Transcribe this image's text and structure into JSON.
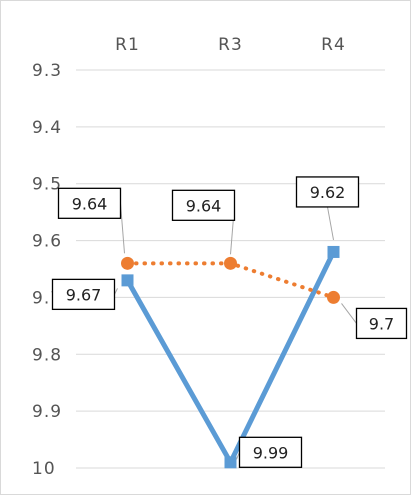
{
  "chart_data": {
    "type": "line",
    "categories": [
      "R1",
      "R3",
      "R4"
    ],
    "y_axis": {
      "reversed": true,
      "min": 9.3,
      "max": 10,
      "major_unit": 0.1,
      "tick_labels": [
        "9.3",
        "9.4",
        "9.5",
        "9.6",
        "9.7",
        "9.8",
        "9.9",
        "10"
      ]
    },
    "x_axis_position": "top",
    "grid": true,
    "legend": "none",
    "series": [
      {
        "values": [
          9.67,
          9.99,
          9.62
        ],
        "labels": [
          "9.67",
          "9.99",
          "9.62"
        ],
        "color": "#5b9bd5",
        "line_style": "solid",
        "marker": "square"
      },
      {
        "values": [
          9.64,
          9.64,
          9.7
        ],
        "labels": [
          "9.64",
          "9.64",
          "9.7"
        ],
        "color": "#ed7d31",
        "line_style": "dotted",
        "marker": "circle"
      }
    ]
  }
}
